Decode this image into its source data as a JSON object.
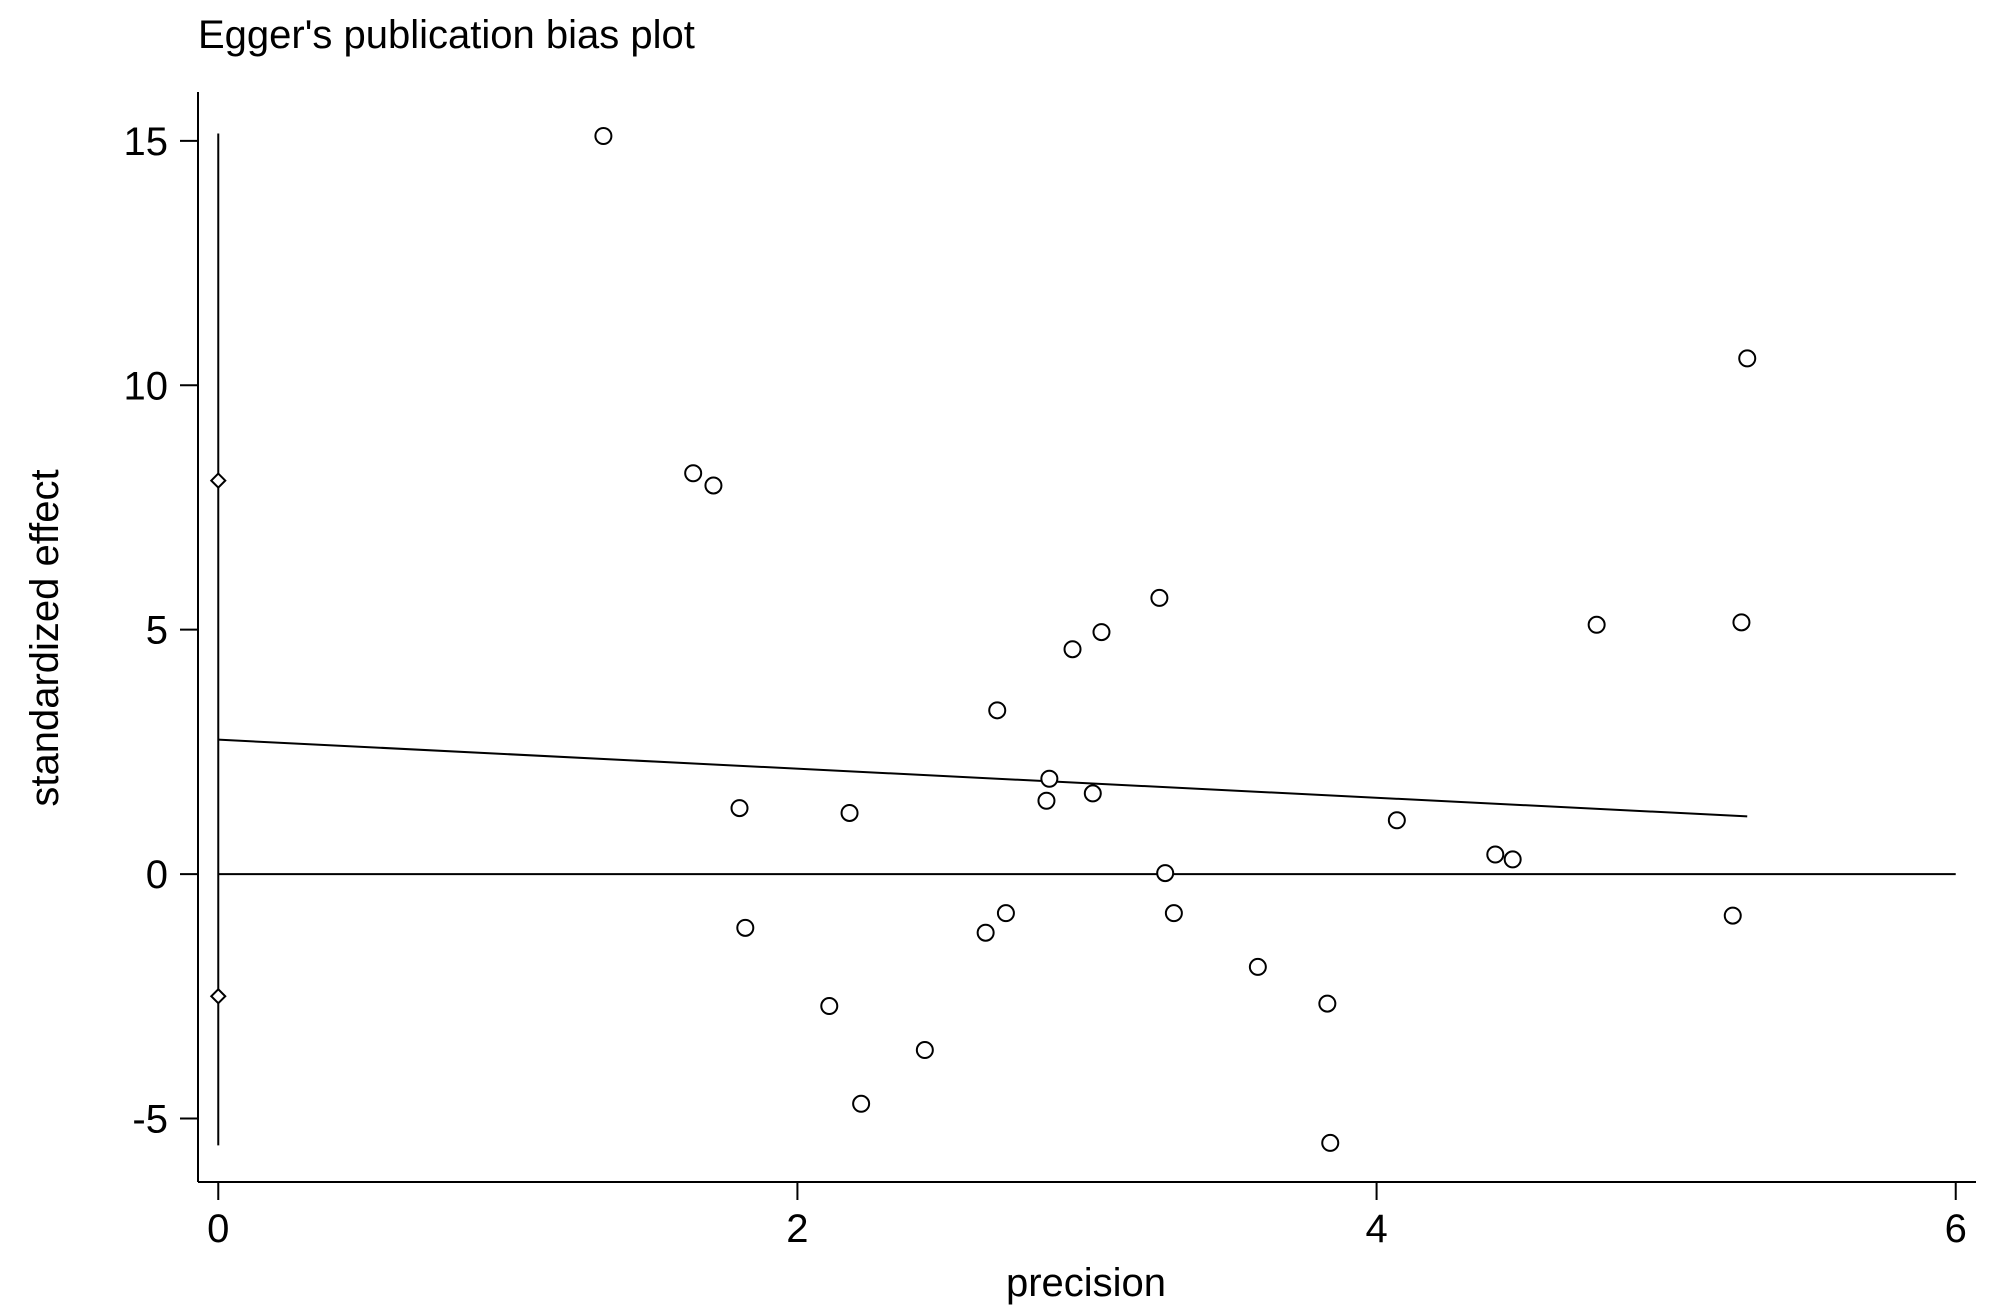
{
  "chart_data": {
    "type": "scatter",
    "title": "Egger's publication bias plot",
    "xlabel": "precision",
    "ylabel": "standardized effect",
    "xlim": [
      -0.07,
      6.07
    ],
    "ylim": [
      -6.3,
      16.0
    ],
    "xticks": [
      0,
      2,
      4,
      6
    ],
    "yticks": [
      -5,
      0,
      5,
      10,
      15
    ],
    "grid": false,
    "legend": "none",
    "series": [
      {
        "marker": "circle",
        "points": [
          {
            "x": 1.33,
            "y": 15.1
          },
          {
            "x": 1.64,
            "y": 8.2
          },
          {
            "x": 1.71,
            "y": 7.95
          },
          {
            "x": 1.8,
            "y": 1.35
          },
          {
            "x": 1.82,
            "y": -1.1
          },
          {
            "x": 2.11,
            "y": -2.7
          },
          {
            "x": 2.18,
            "y": 1.25
          },
          {
            "x": 2.22,
            "y": -4.7
          },
          {
            "x": 2.44,
            "y": -3.6
          },
          {
            "x": 2.65,
            "y": -1.2
          },
          {
            "x": 2.69,
            "y": 3.35
          },
          {
            "x": 2.72,
            "y": -0.8
          },
          {
            "x": 2.86,
            "y": 1.5
          },
          {
            "x": 2.87,
            "y": 1.95
          },
          {
            "x": 2.95,
            "y": 4.6
          },
          {
            "x": 3.02,
            "y": 1.65
          },
          {
            "x": 3.05,
            "y": 4.95
          },
          {
            "x": 3.25,
            "y": 5.65
          },
          {
            "x": 3.27,
            "y": 0.02
          },
          {
            "x": 3.3,
            "y": -0.8
          },
          {
            "x": 3.59,
            "y": -1.9
          },
          {
            "x": 3.83,
            "y": -2.65
          },
          {
            "x": 3.84,
            "y": -5.5
          },
          {
            "x": 4.07,
            "y": 1.1
          },
          {
            "x": 4.41,
            "y": 0.4
          },
          {
            "x": 4.47,
            "y": 0.3
          },
          {
            "x": 4.76,
            "y": 5.1
          },
          {
            "x": 5.23,
            "y": -0.85
          },
          {
            "x": 5.26,
            "y": 5.15
          },
          {
            "x": 5.28,
            "y": 10.55
          }
        ]
      },
      {
        "marker": "diamond",
        "points": [
          {
            "x": 0,
            "y": 8.05
          },
          {
            "x": 0,
            "y": -2.5
          }
        ]
      }
    ],
    "lines": [
      {
        "kind": "regression",
        "from": {
          "x": 0,
          "y": 2.75
        },
        "to": {
          "x": 5.28,
          "y": 1.18
        }
      },
      {
        "kind": "zero-reference",
        "from": {
          "x": 0,
          "y": 0
        },
        "to": {
          "x": 6,
          "y": 0
        }
      },
      {
        "kind": "intercept-ci",
        "from": {
          "x": 0,
          "y": 15.15
        },
        "to": {
          "x": 0,
          "y": -5.55
        }
      }
    ]
  }
}
